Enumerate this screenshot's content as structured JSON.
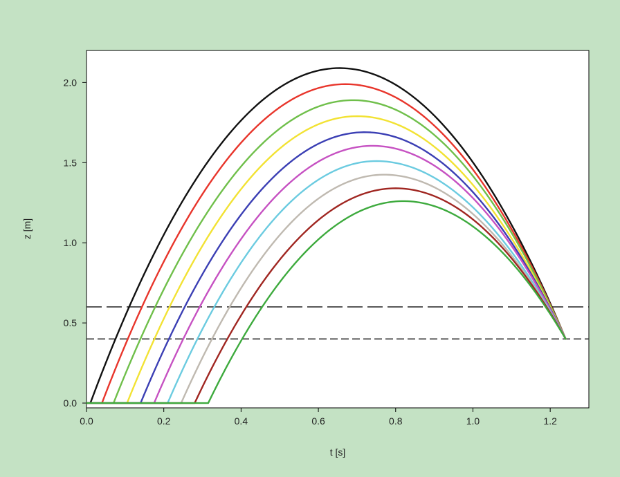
{
  "chart_data": {
    "type": "line",
    "title": "",
    "xlabel": "t [s]",
    "ylabel": "z [m]",
    "xlim": [
      0,
      1.3
    ],
    "ylim": [
      -0.03,
      2.2
    ],
    "x_ticks": [
      0.0,
      0.2,
      0.4,
      0.6,
      0.8,
      1.0,
      1.2
    ],
    "x_tick_labels": [
      "0.0",
      "0.2",
      "0.4",
      "0.6",
      "0.8",
      "1.0",
      "1.2"
    ],
    "y_ticks": [
      0.0,
      0.5,
      1.0,
      1.5,
      2.0
    ],
    "y_tick_labels": [
      "0.0",
      "0.5",
      "1.0",
      "1.5",
      "2.0"
    ],
    "grid": false,
    "legend": "none",
    "end_point": {
      "t": 1.24,
      "z": 0.4
    },
    "reference_lines": [
      {
        "z": 0.6,
        "style": "long-dash",
        "color": "#333333"
      },
      {
        "z": 0.4,
        "style": "dash",
        "color": "#333333"
      }
    ],
    "series": [
      {
        "color": "#111111",
        "t_start": 0.01,
        "peak_t": 0.655,
        "peak_z": 2.09
      },
      {
        "color": "#e8352b",
        "t_start": 0.04,
        "peak_t": 0.67,
        "peak_z": 1.99
      },
      {
        "color": "#6fbf4a",
        "t_start": 0.07,
        "peak_t": 0.69,
        "peak_z": 1.89
      },
      {
        "color": "#f2e233",
        "t_start": 0.105,
        "peak_t": 0.7,
        "peak_z": 1.79
      },
      {
        "color": "#3b3fb4",
        "t_start": 0.14,
        "peak_t": 0.72,
        "peak_z": 1.69
      },
      {
        "color": "#c651c2",
        "t_start": 0.175,
        "peak_t": 0.74,
        "peak_z": 1.605
      },
      {
        "color": "#6bcbe0",
        "t_start": 0.21,
        "peak_t": 0.75,
        "peak_z": 1.51
      },
      {
        "color": "#bfb9b0",
        "t_start": 0.245,
        "peak_t": 0.77,
        "peak_z": 1.425
      },
      {
        "color": "#a02621",
        "t_start": 0.28,
        "peak_t": 0.8,
        "peak_z": 1.34
      },
      {
        "color": "#3daa3d",
        "t_start": 0.315,
        "peak_t": 0.82,
        "peak_z": 1.26
      }
    ]
  }
}
